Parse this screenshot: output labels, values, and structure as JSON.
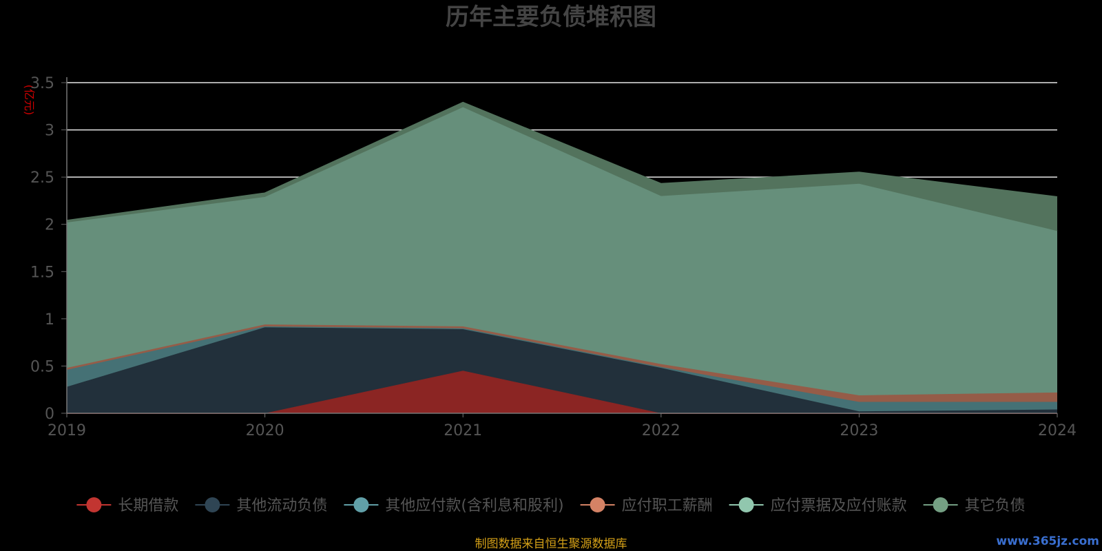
{
  "chart_data": {
    "type": "area",
    "stacked": true,
    "title": "历年主要负债堆积图",
    "unit_label": "(亿元)",
    "x": [
      "2019",
      "2020",
      "2021",
      "2022",
      "2023",
      "2024"
    ],
    "ylim": [
      0,
      3.5
    ],
    "yticks": [
      "0",
      "0.5",
      "1",
      "1.5",
      "2",
      "2.5",
      "3",
      "3.5"
    ],
    "grid": true,
    "legend_position": "bottom",
    "series": [
      {
        "name": "长期借款",
        "color": "#c23531",
        "fill": "#8b2523",
        "values": [
          0,
          0,
          0.45,
          0,
          0,
          0
        ]
      },
      {
        "name": "其他流动负债",
        "color": "#2f4554",
        "fill": "#22303b",
        "values": [
          0.28,
          0.91,
          0.44,
          0.48,
          0.02,
          0.04
        ]
      },
      {
        "name": "其他应付款(含利息和股利)",
        "color": "#61a0a8",
        "fill": "#457175",
        "values": [
          0.18,
          0.01,
          0.01,
          0.01,
          0.1,
          0.08
        ]
      },
      {
        "name": "应付职工薪酬",
        "color": "#d48265",
        "fill": "#955c48",
        "values": [
          0.02,
          0.02,
          0.02,
          0.03,
          0.07,
          0.1
        ]
      },
      {
        "name": "应付票据及应付账款",
        "color": "#91c7ae",
        "fill": "#668f7b",
        "values": [
          1.54,
          1.35,
          2.32,
          1.78,
          2.24,
          1.71
        ]
      },
      {
        "name": "其它负债",
        "color": "#749f83",
        "fill": "#53735d",
        "values": [
          0.02,
          0.04,
          0.05,
          0.13,
          0.12,
          0.36
        ]
      }
    ]
  },
  "footer": {
    "source": "制图数据来自恒生聚源数据库",
    "source_color": "#d4a017",
    "watermark": "www.365jz.com",
    "watermark_color": "#3a6fd0"
  }
}
